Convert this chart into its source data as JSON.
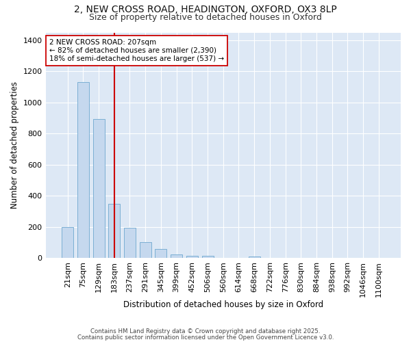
{
  "title_line1": "2, NEW CROSS ROAD, HEADINGTON, OXFORD, OX3 8LP",
  "title_line2": "Size of property relative to detached houses in Oxford",
  "xlabel": "Distribution of detached houses by size in Oxford",
  "ylabel": "Number of detached properties",
  "categories": [
    "21sqm",
    "75sqm",
    "129sqm",
    "183sqm",
    "237sqm",
    "291sqm",
    "345sqm",
    "399sqm",
    "452sqm",
    "506sqm",
    "560sqm",
    "614sqm",
    "668sqm",
    "722sqm",
    "776sqm",
    "830sqm",
    "884sqm",
    "938sqm",
    "992sqm",
    "1046sqm",
    "1100sqm"
  ],
  "values": [
    200,
    1130,
    895,
    350,
    195,
    100,
    60,
    22,
    15,
    15,
    0,
    0,
    10,
    0,
    0,
    0,
    0,
    0,
    0,
    0,
    0
  ],
  "bar_color": "#c5d8ee",
  "bar_edgecolor": "#7bafd4",
  "plot_bg_color": "#dde8f5",
  "fig_bg_color": "#ffffff",
  "grid_color": "#ffffff",
  "vline_x": 3,
  "vline_color": "#cc0000",
  "annotation_text": "2 NEW CROSS ROAD: 207sqm\n← 82% of detached houses are smaller (2,390)\n18% of semi-detached houses are larger (537) →",
  "annotation_box_color": "#ffffff",
  "annotation_box_edgecolor": "#cc0000",
  "footnote1": "Contains HM Land Registry data © Crown copyright and database right 2025.",
  "footnote2": "Contains public sector information licensed under the Open Government Licence v3.0.",
  "ylim": [
    0,
    1450
  ],
  "yticks": [
    0,
    200,
    400,
    600,
    800,
    1000,
    1200,
    1400
  ],
  "bar_width": 0.75
}
